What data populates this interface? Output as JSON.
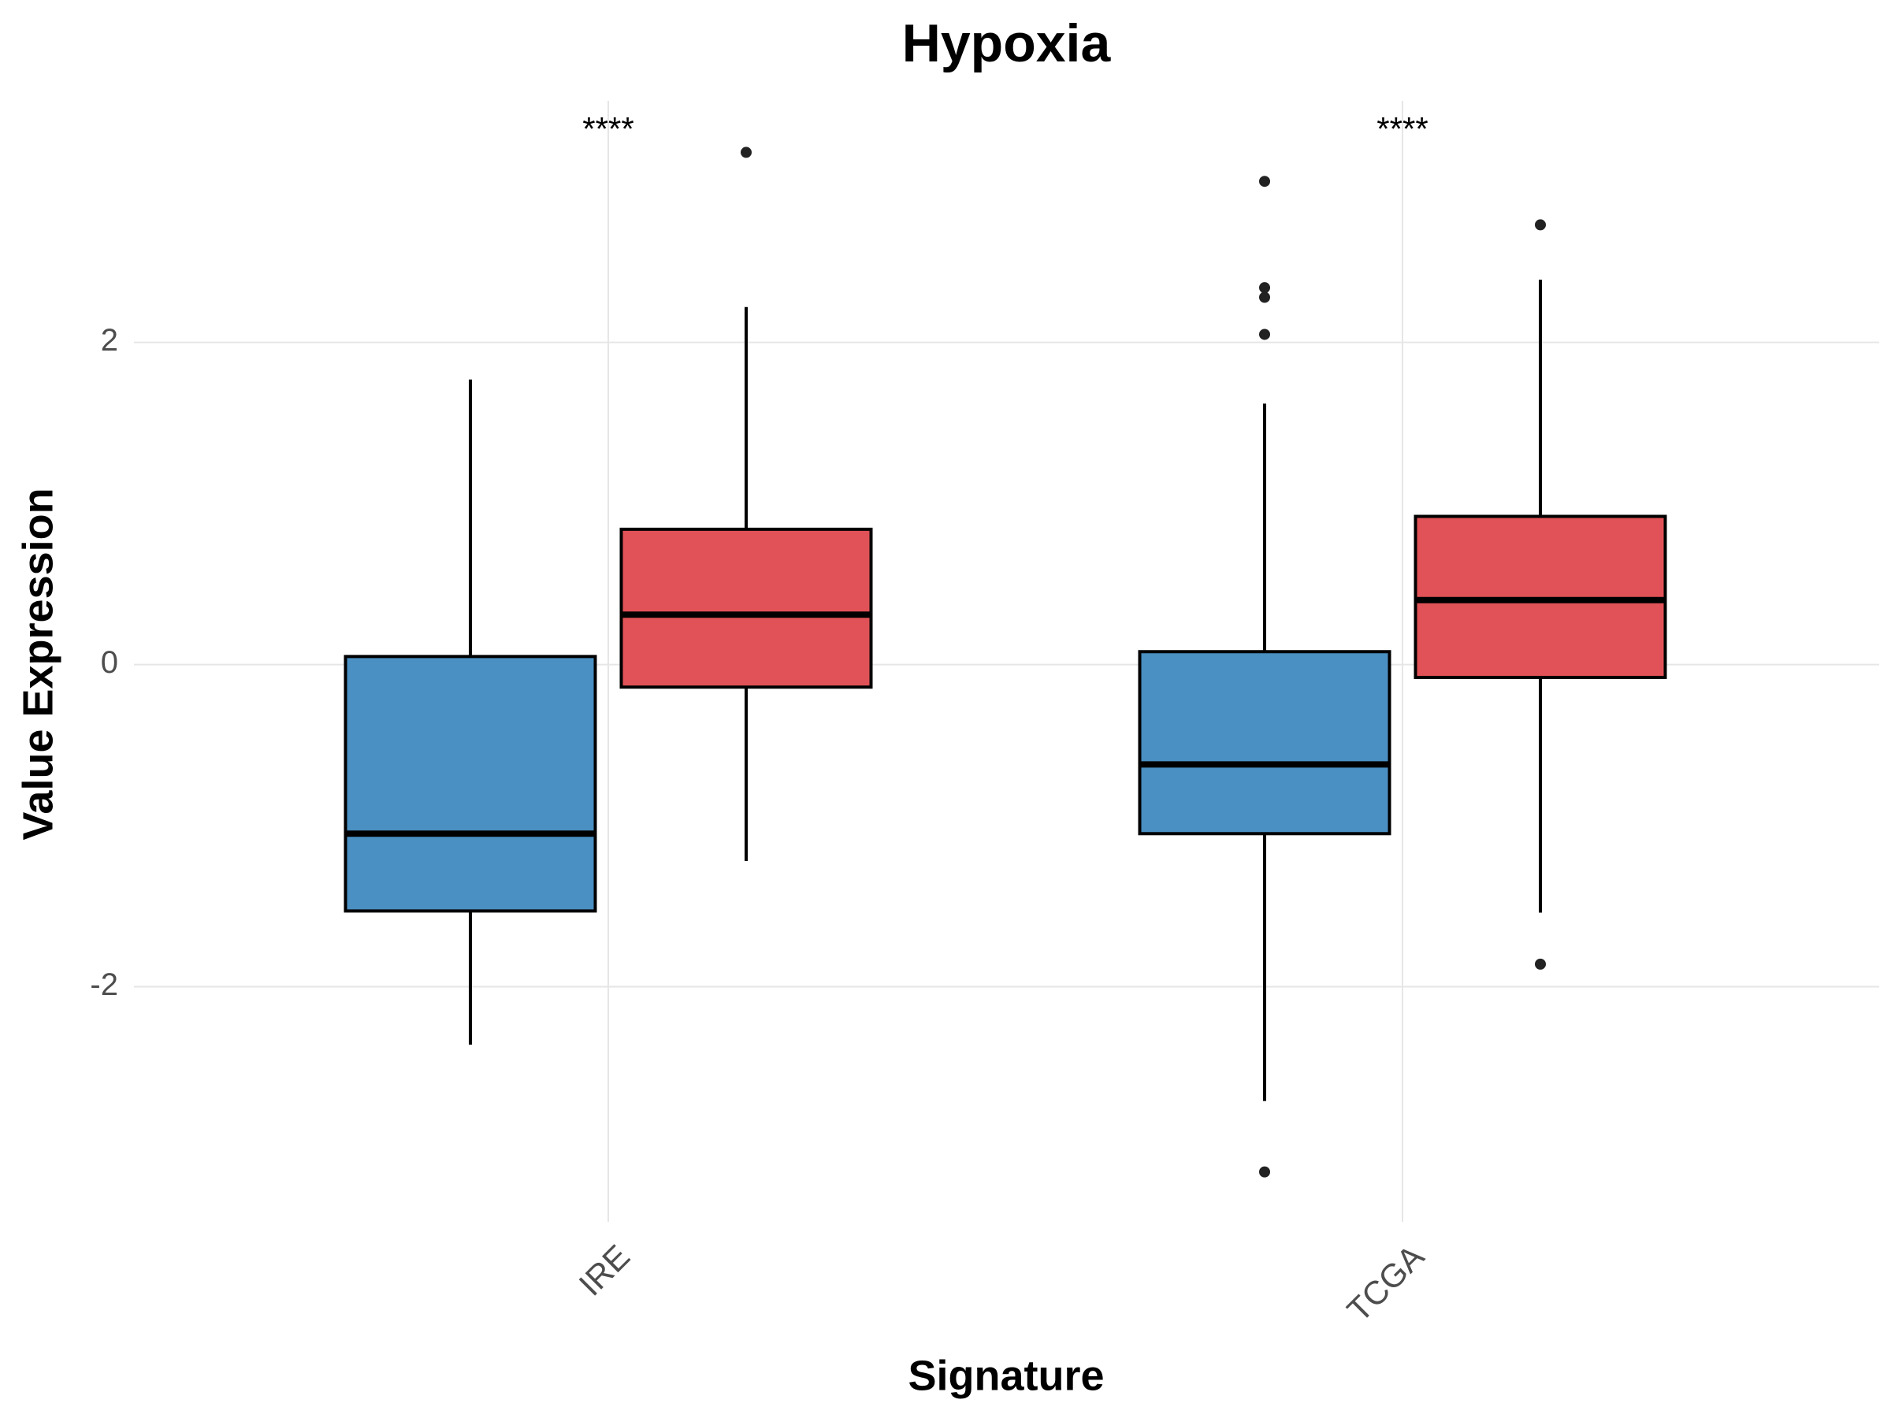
{
  "chart_data": {
    "type": "box",
    "title": "Hypoxia",
    "x_label": "Signature",
    "y_label": "Value Expression",
    "categories": [
      "IRE",
      "TCGA"
    ],
    "significance_labels": [
      "****",
      "****"
    ],
    "series": [
      {
        "color": "#4a90c2",
        "values": [
          {
            "whislo": -2.36,
            "q1": -1.53,
            "med": -1.05,
            "q3": 0.05,
            "whishi": 1.77,
            "fliers": []
          },
          {
            "whislo": -2.71,
            "q1": -1.05,
            "med": -0.62,
            "q3": 0.08,
            "whishi": 1.62,
            "fliers": [
              3.0,
              2.34,
              2.28,
              2.05,
              -3.15
            ]
          }
        ]
      },
      {
        "color": "#e05257",
        "values": [
          {
            "whislo": -1.22,
            "q1": -0.14,
            "med": 0.31,
            "q3": 0.84,
            "whishi": 2.22,
            "fliers": [
              3.18
            ]
          },
          {
            "whislo": -1.54,
            "q1": -0.08,
            "med": 0.4,
            "q3": 0.92,
            "whishi": 2.39,
            "fliers": [
              2.73,
              -1.86
            ]
          }
        ]
      }
    ],
    "ylim": [
      -3.46,
      3.5
    ],
    "yticks": [
      -2,
      0,
      2
    ],
    "grid": true
  }
}
